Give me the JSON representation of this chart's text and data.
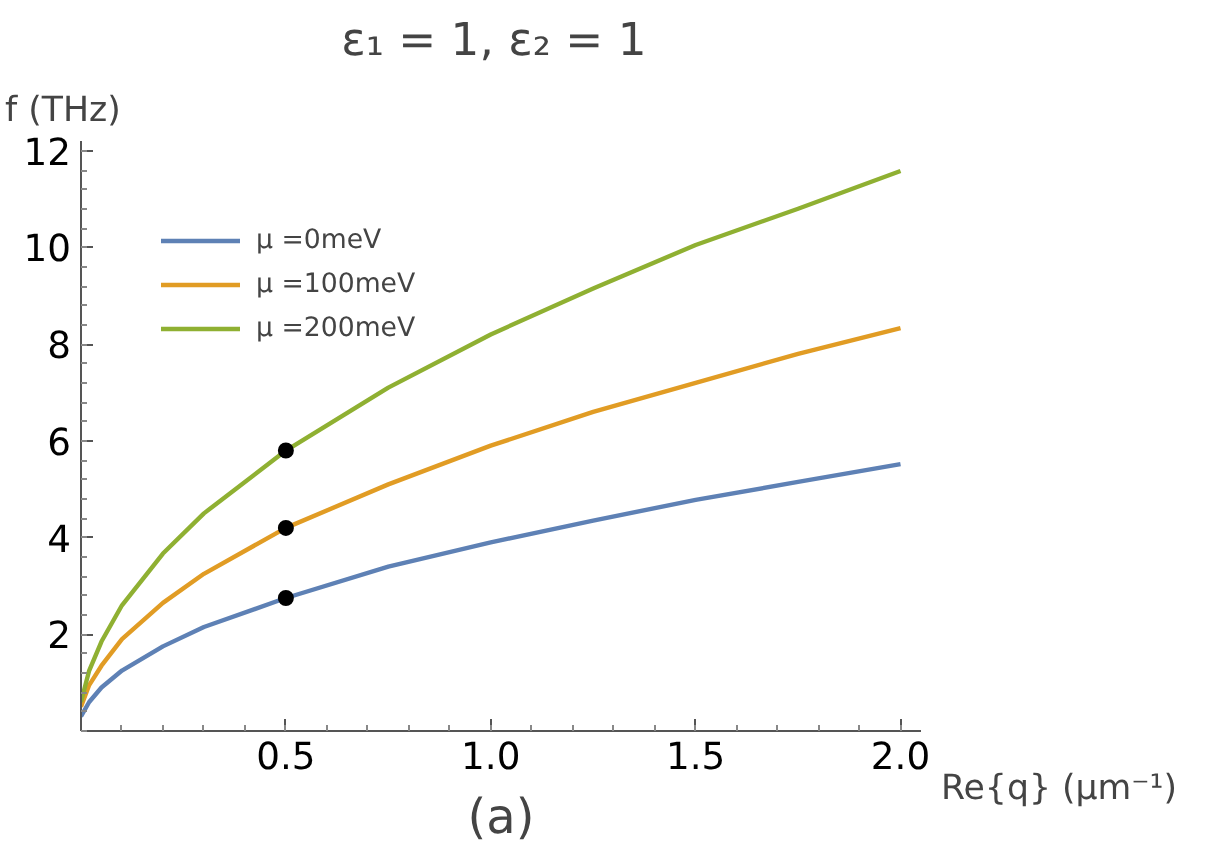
{
  "chart_data": {
    "type": "line",
    "title": "ε₁ = 1,  ε₂ = 1",
    "xlabel": "Re{q} (μm⁻¹)",
    "ylabel": "f (THz)",
    "annotations": [
      "(a)"
    ],
    "x": [
      0,
      0.02,
      0.05,
      0.1,
      0.2,
      0.3,
      0.5,
      0.75,
      1,
      1.25,
      1.5,
      1.75,
      2
    ],
    "series": [
      {
        "name": "μ =0meV",
        "color": "#5e81b5",
        "values": [
          0.3,
          0.6,
          0.9,
          1.25,
          1.75,
          2.15,
          2.75,
          3.4,
          3.9,
          4.35,
          4.78,
          5.15,
          5.52
        ]
      },
      {
        "name": "μ =100meV",
        "color": "#e19c24",
        "values": [
          0.5,
          0.95,
          1.35,
          1.9,
          2.65,
          3.25,
          4.2,
          5.1,
          5.9,
          6.6,
          7.2,
          7.8,
          8.33
        ]
      },
      {
        "name": "μ =200meV",
        "color": "#8fb032",
        "values": [
          0.6,
          1.25,
          1.85,
          2.6,
          3.67,
          4.5,
          5.8,
          7.1,
          8.2,
          9.15,
          10.05,
          10.8,
          11.58
        ]
      },
      {
        "type": "scatter",
        "marker": "circle",
        "color": "#000000",
        "values": [
          null,
          null,
          null,
          null,
          null,
          null,
          2.75,
          null,
          null,
          null,
          null,
          null,
          null
        ]
      },
      {
        "type": "scatter",
        "marker": "circle",
        "color": "#000000",
        "values": [
          null,
          null,
          null,
          null,
          null,
          null,
          4.2,
          null,
          null,
          null,
          null,
          null,
          null
        ]
      },
      {
        "type": "scatter",
        "marker": "circle",
        "color": "#000000",
        "values": [
          null,
          null,
          null,
          null,
          null,
          null,
          5.8,
          null,
          null,
          null,
          null,
          null,
          null
        ]
      }
    ],
    "xlim": [
      0,
      2.05
    ],
    "ylim": [
      0,
      12.2
    ],
    "xticks": [
      0.5,
      {
        "value": 1,
        "label": "1.0"
      },
      1.5,
      {
        "value": 2,
        "label": "2.0"
      }
    ],
    "yticks": [
      2,
      4,
      6,
      8,
      10,
      12
    ],
    "grid": false,
    "legend": "top left",
    "line_style": "solid",
    "marker": "none"
  }
}
